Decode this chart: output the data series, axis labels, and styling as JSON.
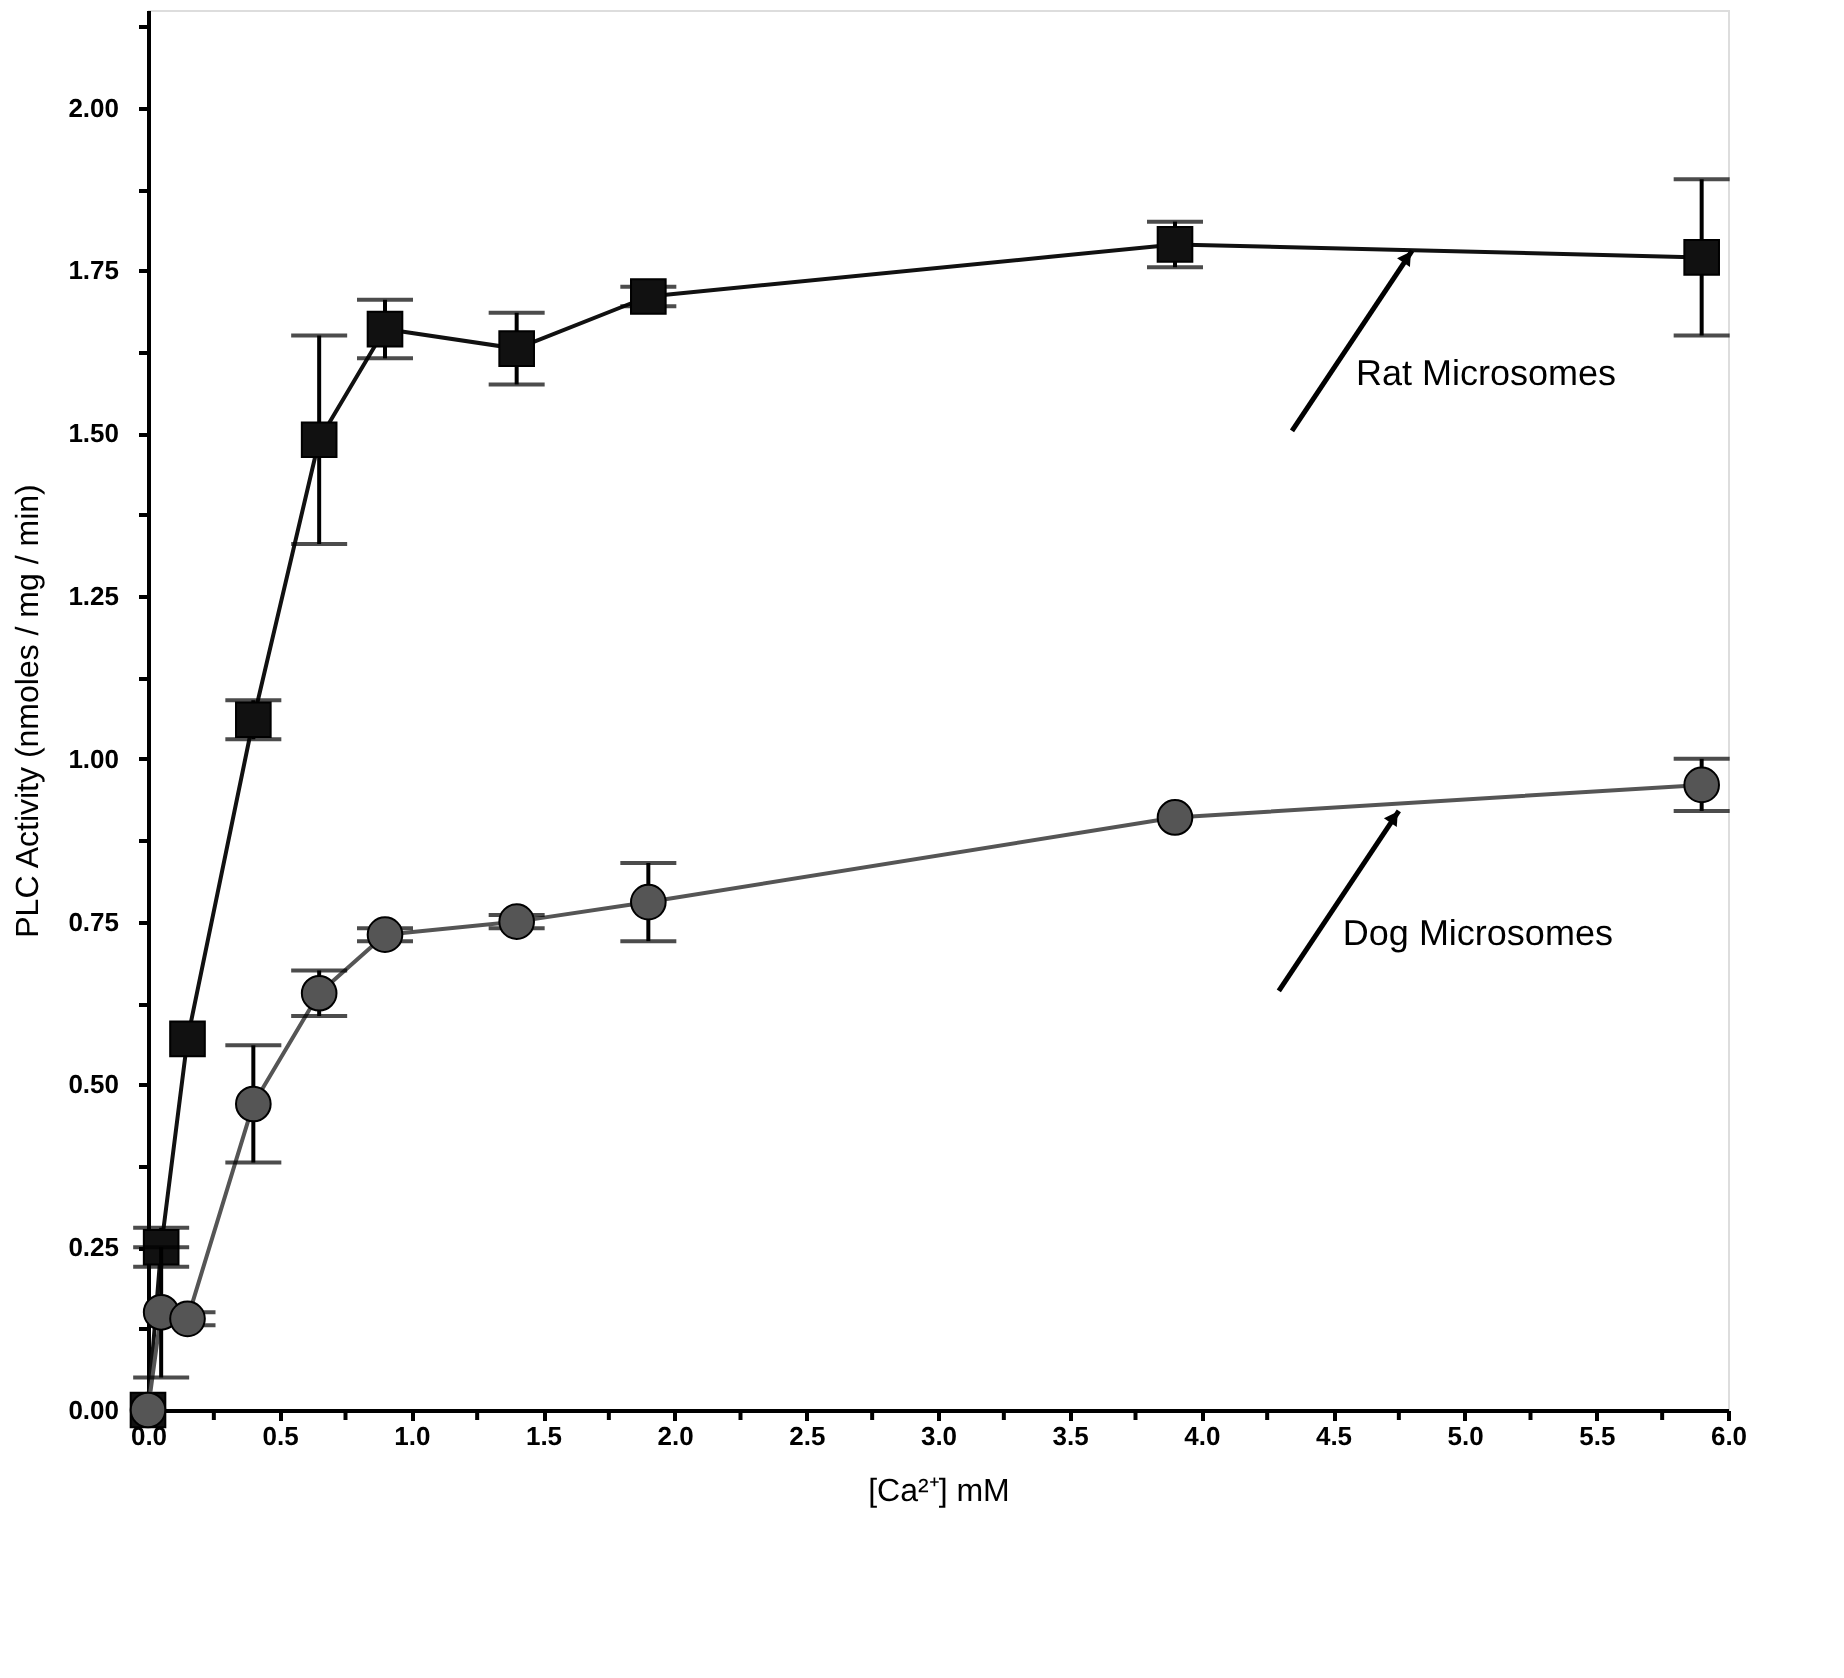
{
  "chart_data": {
    "type": "line",
    "xlabel": "[Ca²⁺] mM",
    "ylabel": "PLC Activity (nmoles / mg / min)",
    "x": [
      0,
      0.05,
      0.15,
      0.4,
      0.65,
      0.9,
      1.4,
      1.9,
      3.9,
      5.9
    ],
    "series": [
      {
        "color": "#111111",
        "marker": "square",
        "values": [
          0,
          0.25,
          0.57,
          1.06,
          1.49,
          1.66,
          1.63,
          1.71,
          1.79,
          1.77
        ],
        "errors": [
          null,
          0.03,
          null,
          0.03,
          0.16,
          0.045,
          0.055,
          0.015,
          0.035,
          0.12
        ]
      },
      {
        "color": "#555555",
        "marker": "circle",
        "values": [
          0,
          0.15,
          0.14,
          0.47,
          0.64,
          0.73,
          0.75,
          0.78,
          0.91,
          0.96
        ],
        "errors": [
          null,
          0.1,
          0.01,
          0.09,
          0.035,
          0.01,
          0.01,
          0.06,
          null,
          0.04
        ]
      }
    ],
    "annotations": [
      {
        "text": "Rat Microsomes",
        "x": 4.8,
        "y": 1.78
      },
      {
        "text": "Dog Microsomes",
        "x": 4.75,
        "y": 0.92
      }
    ],
    "xlim": [
      0,
      6
    ],
    "xticks": [
      {
        "value": 0,
        "label": "0.0"
      },
      {
        "value": 0.25,
        "label": null
      },
      {
        "value": 0.5,
        "label": "0.5"
      },
      {
        "value": 0.75,
        "label": null
      },
      {
        "value": 1,
        "label": "1.0"
      },
      {
        "value": 1.25,
        "label": null
      },
      {
        "value": 1.5,
        "label": "1.5"
      },
      {
        "value": 1.75,
        "label": null
      },
      {
        "value": 2,
        "label": "2.0"
      },
      {
        "value": 2.25,
        "label": null
      },
      {
        "value": 2.5,
        "label": "2.5"
      },
      {
        "value": 2.75,
        "label": null
      },
      {
        "value": 3,
        "label": "3.0"
      },
      {
        "value": 3.25,
        "label": null
      },
      {
        "value": 3.5,
        "label": "3.5"
      },
      {
        "value": 3.75,
        "label": null
      },
      {
        "value": 4,
        "label": "4.0"
      },
      {
        "value": 4.25,
        "label": null
      },
      {
        "value": 4.5,
        "label": "4.5"
      },
      {
        "value": 4.75,
        "label": null
      },
      {
        "value": 5,
        "label": "5.0"
      },
      {
        "value": 5.25,
        "label": null
      },
      {
        "value": 5.5,
        "label": "5.5"
      },
      {
        "value": 5.75,
        "label": null
      },
      {
        "value": 6,
        "label": "6.0"
      }
    ],
    "ylim": [
      0,
      2.15
    ],
    "yticks": [
      {
        "value": 0,
        "label": "0.00"
      },
      {
        "value": 0.125,
        "label": null
      },
      {
        "value": 0.25,
        "label": "0.25"
      },
      {
        "value": 0.375,
        "label": null
      },
      {
        "value": 0.5,
        "label": "0.50"
      },
      {
        "value": 0.625,
        "label": null
      },
      {
        "value": 0.75,
        "label": "0.75"
      },
      {
        "value": 0.875,
        "label": null
      },
      {
        "value": 1,
        "label": "1.00"
      },
      {
        "value": 1.125,
        "label": null
      },
      {
        "value": 1.25,
        "label": "1.25"
      },
      {
        "value": 1.375,
        "label": null
      },
      {
        "value": 1.5,
        "label": "1.50"
      },
      {
        "value": 1.625,
        "label": null
      },
      {
        "value": 1.75,
        "label": "1.75"
      },
      {
        "value": 1.875,
        "label": null
      },
      {
        "value": 2,
        "label": "2.00"
      },
      {
        "value": 2.125,
        "label": null
      }
    ],
    "grid": false
  }
}
